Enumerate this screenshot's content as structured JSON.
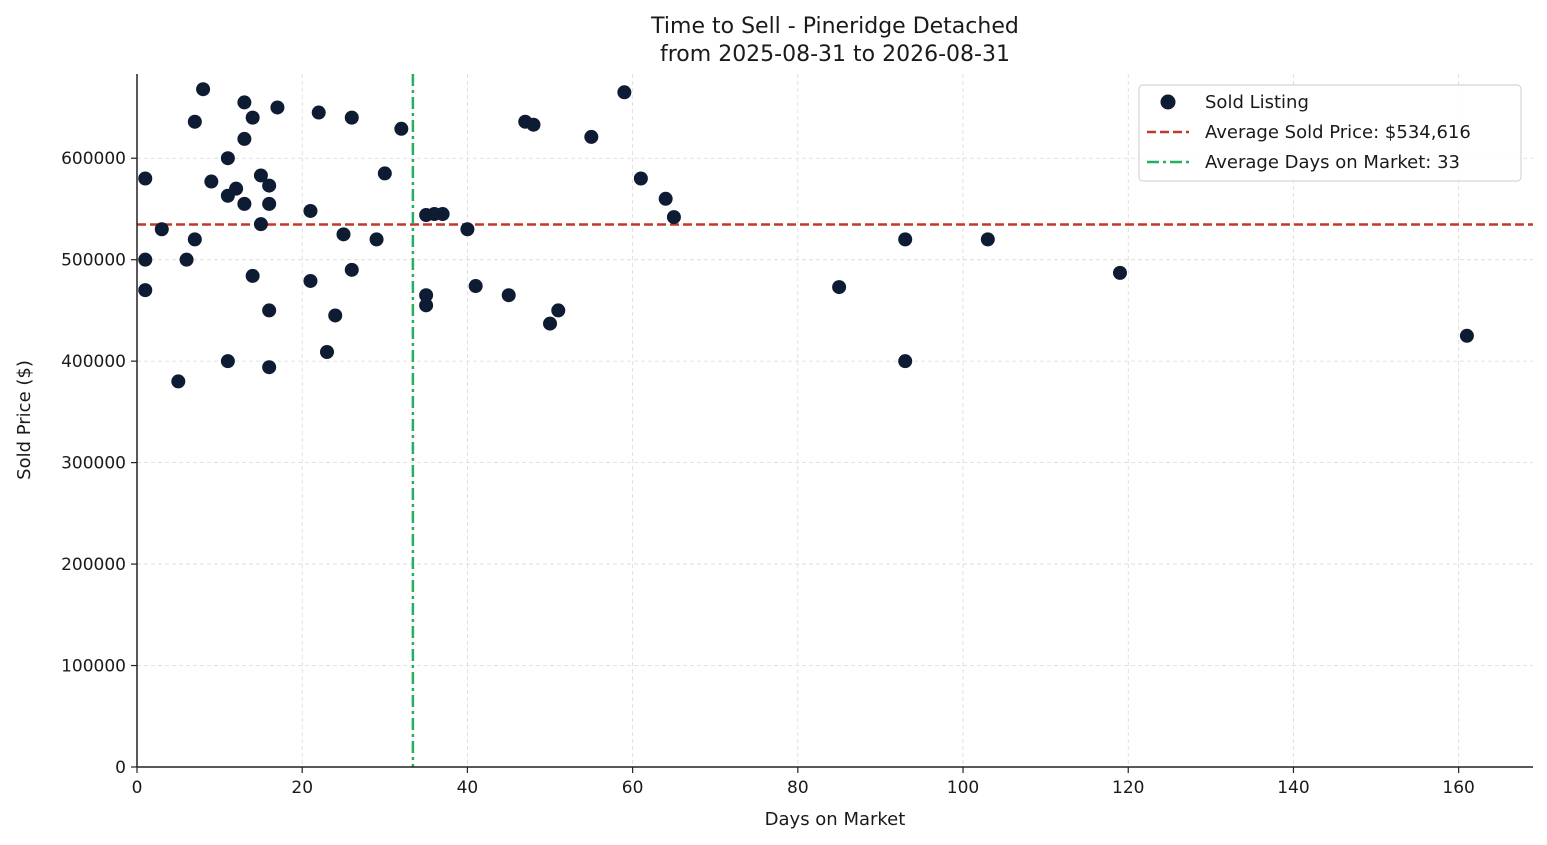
{
  "chart_data": {
    "type": "scatter",
    "title": "Time to Sell - Pineridge Detached",
    "subtitle": "from 2025-08-31 to 2026-08-31",
    "xlabel": "Days on Market",
    "ylabel": "Sold Price ($)",
    "xlim": [
      0,
      169
    ],
    "ylim": [
      0,
      683000
    ],
    "xticks": [
      0,
      20,
      40,
      60,
      80,
      100,
      120,
      140,
      160
    ],
    "yticks": [
      0,
      100000,
      200000,
      300000,
      400000,
      500000,
      600000
    ],
    "grid": true,
    "legend_position": "top-right",
    "colors": {
      "points": "#0d1b33",
      "avg_price_line": "#c0392b",
      "avg_days_line": "#27ae60"
    },
    "series": [
      {
        "name": "Sold Listing",
        "points": [
          [
            1,
            580000
          ],
          [
            1,
            500000
          ],
          [
            1,
            470000
          ],
          [
            3,
            530000
          ],
          [
            5,
            380000
          ],
          [
            6,
            500000
          ],
          [
            7,
            636000
          ],
          [
            7,
            520000
          ],
          [
            8,
            668000
          ],
          [
            9,
            577000
          ],
          [
            11,
            600000
          ],
          [
            11,
            563000
          ],
          [
            11,
            400000
          ],
          [
            12,
            570000
          ],
          [
            13,
            655000
          ],
          [
            13,
            619000
          ],
          [
            13,
            555000
          ],
          [
            14,
            640000
          ],
          [
            14,
            484000
          ],
          [
            15,
            583000
          ],
          [
            15,
            535000
          ],
          [
            16,
            573000
          ],
          [
            16,
            555000
          ],
          [
            16,
            450000
          ],
          [
            16,
            394000
          ],
          [
            17,
            650000
          ],
          [
            21,
            548000
          ],
          [
            21,
            479000
          ],
          [
            22,
            645000
          ],
          [
            23,
            409000
          ],
          [
            24,
            445000
          ],
          [
            25,
            525000
          ],
          [
            26,
            640000
          ],
          [
            26,
            490000
          ],
          [
            29,
            520000
          ],
          [
            30,
            585000
          ],
          [
            32,
            629000
          ],
          [
            35,
            544000
          ],
          [
            35,
            465000
          ],
          [
            35,
            455000
          ],
          [
            36,
            545000
          ],
          [
            37,
            545000
          ],
          [
            40,
            530000
          ],
          [
            41,
            474000
          ],
          [
            45,
            465000
          ],
          [
            47,
            636000
          ],
          [
            48,
            633000
          ],
          [
            50,
            437000
          ],
          [
            51,
            450000
          ],
          [
            55,
            621000
          ],
          [
            59,
            665000
          ],
          [
            61,
            580000
          ],
          [
            64,
            560000
          ],
          [
            65,
            542000
          ],
          [
            85,
            473000
          ],
          [
            93,
            520000
          ],
          [
            93,
            400000
          ],
          [
            103,
            520000
          ],
          [
            119,
            487000
          ],
          [
            161,
            425000
          ]
        ]
      }
    ],
    "reference_lines": [
      {
        "name": "Average Sold Price: $534,616",
        "orientation": "horizontal",
        "value": 534616,
        "style": "dashed"
      },
      {
        "name": "Average Days on Market: 33",
        "orientation": "vertical",
        "value": 33.4,
        "style": "dashdot"
      }
    ]
  }
}
